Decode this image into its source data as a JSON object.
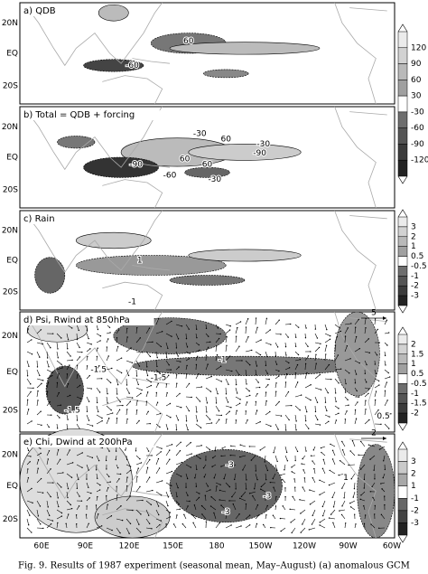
{
  "panels": [
    {
      "title": "a) QDB",
      "lat_labels": [
        "20N",
        "EQ",
        "20S"
      ],
      "contour_labels": [
        "-60",
        "60"
      ]
    },
    {
      "title": "b) Total = QDB + forcing",
      "lat_labels": [
        "20N",
        "EQ",
        "20S"
      ],
      "contour_labels": [
        "-30",
        "60",
        "-30",
        "-90",
        "60",
        "-90",
        "60",
        "-60",
        "-30"
      ]
    },
    {
      "title": "c) Rain",
      "lat_labels": [
        "20N",
        "EQ",
        "20S"
      ],
      "contour_labels": [
        "-1",
        "1"
      ]
    },
    {
      "title": "d) Psi, Rwind at 850hPa",
      "lat_labels": [
        "20N",
        "EQ",
        "20S"
      ],
      "contour_labels": [
        "-1.5",
        "-1",
        "-1.5",
        "-1.5",
        "0.5"
      ]
    },
    {
      "title": "e) Chi, Dwind at 200hPa",
      "lat_labels": [
        "20N",
        "EQ",
        "20S"
      ],
      "contour_labels": [
        "-3",
        "-3",
        "-3",
        "1"
      ]
    }
  ],
  "colorbars": [
    {
      "ticks": [
        "120",
        "90",
        "60",
        "30",
        "-30",
        "-60",
        "-90",
        "-120"
      ]
    },
    {
      "ticks": [
        "3",
        "2",
        "1",
        "0.5",
        "-0.5",
        "-1",
        "-2",
        "-3"
      ]
    },
    {
      "ticks": [
        "2",
        "1.5",
        "1",
        "0.5",
        "-0.5",
        "-1",
        "-1.5",
        "-2"
      ]
    },
    {
      "ticks": [
        "3",
        "2",
        "1",
        "-1",
        "-2",
        "-3"
      ]
    }
  ],
  "reference_arrows": [
    "5",
    "2"
  ],
  "lon_labels": [
    "60E",
    "90E",
    "120E",
    "150E",
    "180",
    "150W",
    "120W",
    "90W",
    "60W"
  ],
  "caption": "Fig. 9. Results of 1987 experiment (seasonal mean, May–August) (a) anomalous GCM"
}
